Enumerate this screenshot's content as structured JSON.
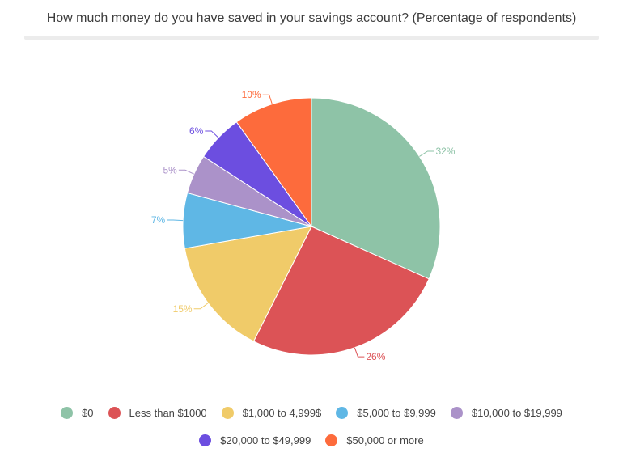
{
  "chart_data": {
    "type": "pie",
    "title": "How much money do you have saved in your savings account? (Percentage of respondents)",
    "slices": [
      {
        "name": "$0",
        "value": 32,
        "label": "32%",
        "color": "#8ec3a7"
      },
      {
        "name": "Less than $1000",
        "value": 26,
        "label": "26%",
        "color": "#dc5356"
      },
      {
        "name": "$1,000 to 4,999$",
        "value": 15,
        "label": "15%",
        "color": "#f0cb69"
      },
      {
        "name": "$5,000 to $9,999",
        "value": 7,
        "label": "7%",
        "color": "#5fb7e5"
      },
      {
        "name": "$10,000 to $19,999",
        "value": 5,
        "label": "5%",
        "color": "#ab92c9"
      },
      {
        "name": "$20,000 to $49,999",
        "value": 6,
        "label": "6%",
        "color": "#6c4ee0"
      },
      {
        "name": "$50,000 or more",
        "value": 10,
        "label": "10%",
        "color": "#fd6b3c"
      }
    ],
    "legend_position": "bottom"
  }
}
